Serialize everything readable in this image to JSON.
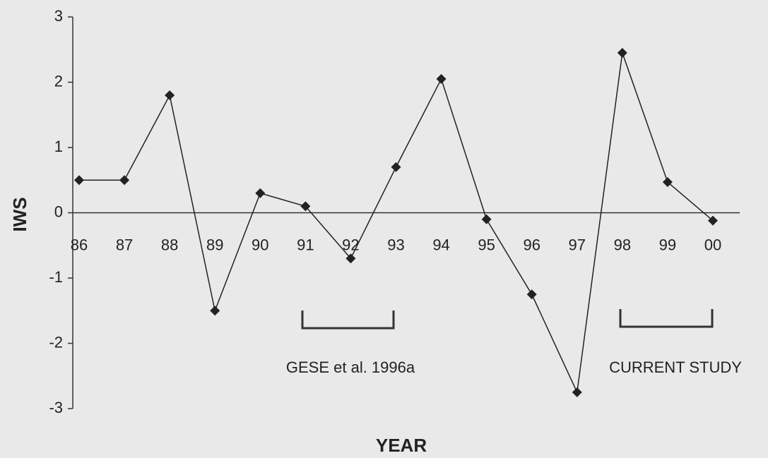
{
  "chart_data": {
    "type": "line",
    "categories": [
      "86",
      "87",
      "88",
      "89",
      "90",
      "91",
      "92",
      "93",
      "94",
      "95",
      "96",
      "97",
      "98",
      "99",
      "00"
    ],
    "values": [
      0.5,
      0.5,
      1.8,
      -1.5,
      0.3,
      0.1,
      -0.7,
      0.7,
      2.05,
      -0.1,
      -1.25,
      -2.75,
      2.45,
      0.47,
      -0.12
    ],
    "color": "#222222",
    "ylim": [
      -3,
      3
    ],
    "yticks": [
      -3,
      -2,
      -1,
      0,
      1,
      2,
      3
    ],
    "x_label": "YEAR",
    "y_label": "IWS",
    "annotations": [
      "GESE et al. 1996a",
      "CURRENT STUDY"
    ]
  }
}
